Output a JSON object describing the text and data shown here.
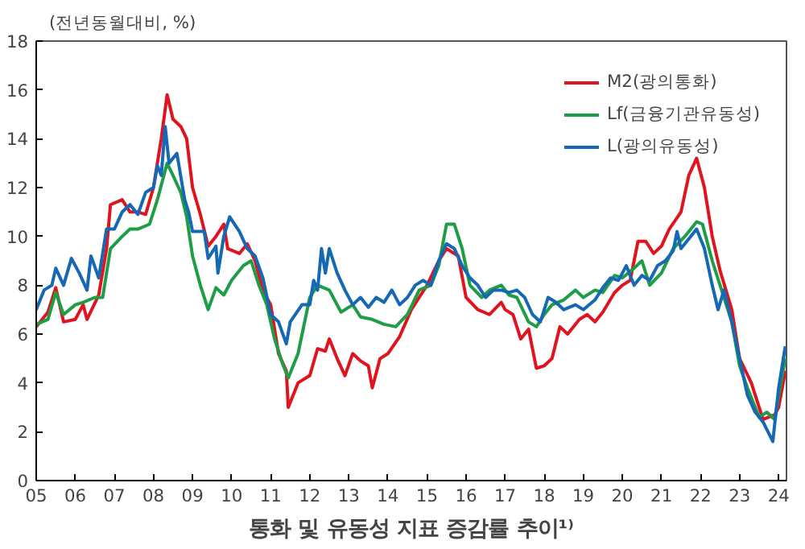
{
  "chart_data": {
    "type": "line",
    "title": "통화 및 유동성 지표 증감률 추이¹⁾",
    "ylabel": "(전년동월대비, %)",
    "xlim": [
      2005,
      2024.2
    ],
    "ylim": [
      0,
      18
    ],
    "yticks": [
      0,
      2,
      4,
      6,
      8,
      10,
      12,
      14,
      16,
      18
    ],
    "xticks": [
      {
        "value": 2005,
        "label": "05"
      },
      {
        "value": 2006,
        "label": "06"
      },
      {
        "value": 2007,
        "label": "07"
      },
      {
        "value": 2008,
        "label": "08"
      },
      {
        "value": 2009,
        "label": "09"
      },
      {
        "value": 2010,
        "label": "10"
      },
      {
        "value": 2011,
        "label": "11"
      },
      {
        "value": 2012,
        "label": "12"
      },
      {
        "value": 2013,
        "label": "13"
      },
      {
        "value": 2014,
        "label": "14"
      },
      {
        "value": 2015,
        "label": "15"
      },
      {
        "value": 2016,
        "label": "16"
      },
      {
        "value": 2017,
        "label": "17"
      },
      {
        "value": 2018,
        "label": "18"
      },
      {
        "value": 2019,
        "label": "19"
      },
      {
        "value": 2020,
        "label": "20"
      },
      {
        "value": 2021,
        "label": "21"
      },
      {
        "value": 2022,
        "label": "22"
      },
      {
        "value": 2023,
        "label": "23"
      },
      {
        "value": 2024,
        "label": "24"
      }
    ],
    "grid": false,
    "legend": "top right",
    "line_style": "solid",
    "series": [
      {
        "name": "M2(광의통화)",
        "color": "#e0141e",
        "x": [
          2005.0,
          2005.3,
          2005.5,
          2005.7,
          2006.0,
          2006.2,
          2006.3,
          2006.6,
          2006.8,
          2006.9,
          2007.2,
          2007.4,
          2007.6,
          2007.8,
          2008.0,
          2008.2,
          2008.35,
          2008.5,
          2008.7,
          2008.85,
          2009.0,
          2009.2,
          2009.4,
          2009.6,
          2009.8,
          2009.9,
          2010.2,
          2010.4,
          2010.6,
          2010.8,
          2011.0,
          2011.2,
          2011.4,
          2011.45,
          2011.7,
          2012.0,
          2012.2,
          2012.4,
          2012.5,
          2012.7,
          2012.9,
          2013.1,
          2013.3,
          2013.5,
          2013.6,
          2013.8,
          2014.0,
          2014.3,
          2014.6,
          2014.8,
          2015.0,
          2015.3,
          2015.5,
          2015.8,
          2016.0,
          2016.3,
          2016.6,
          2016.9,
          2017.0,
          2017.2,
          2017.4,
          2017.6,
          2017.8,
          2018.0,
          2018.2,
          2018.4,
          2018.6,
          2018.9,
          2019.1,
          2019.3,
          2019.5,
          2019.8,
          2020.0,
          2020.2,
          2020.4,
          2020.6,
          2020.8,
          2021.0,
          2021.2,
          2021.5,
          2021.7,
          2021.9,
          2022.1,
          2022.3,
          2022.5,
          2022.8,
          2023.0,
          2023.3,
          2023.6,
          2023.9,
          2024.0,
          2024.17
        ],
        "values": [
          6.3,
          6.9,
          7.9,
          6.5,
          6.6,
          7.2,
          6.6,
          7.6,
          9.5,
          11.3,
          11.5,
          11.0,
          11.0,
          10.9,
          12.0,
          14.0,
          15.8,
          14.8,
          14.5,
          14.0,
          12.0,
          10.9,
          9.6,
          10.0,
          10.5,
          9.5,
          9.3,
          9.7,
          9.0,
          7.8,
          7.2,
          5.2,
          4.5,
          3.0,
          4.0,
          4.3,
          5.4,
          5.3,
          5.8,
          5.0,
          4.3,
          5.2,
          4.9,
          4.7,
          3.8,
          5.0,
          5.2,
          5.9,
          7.0,
          7.5,
          8.0,
          9.0,
          9.5,
          9.2,
          7.5,
          7.0,
          6.8,
          7.3,
          7.0,
          6.8,
          5.8,
          6.2,
          4.6,
          4.7,
          5.0,
          6.3,
          6.0,
          6.6,
          6.8,
          6.5,
          6.9,
          7.7,
          8.0,
          8.2,
          9.8,
          9.8,
          9.3,
          9.6,
          10.3,
          11.0,
          12.5,
          13.2,
          12.0,
          10.0,
          8.6,
          7.0,
          5.0,
          4.0,
          2.5,
          2.7,
          3.0,
          4.5
        ]
      },
      {
        "name": "Lf(금융기관유동성)",
        "color": "#1e9c46",
        "x": [
          2005.0,
          2005.3,
          2005.5,
          2005.7,
          2006.0,
          2006.2,
          2006.5,
          2006.7,
          2006.9,
          2007.2,
          2007.4,
          2007.6,
          2007.9,
          2008.1,
          2008.35,
          2008.5,
          2008.7,
          2008.85,
          2009.0,
          2009.2,
          2009.4,
          2009.6,
          2009.8,
          2010.0,
          2010.3,
          2010.5,
          2010.7,
          2010.9,
          2011.1,
          2011.3,
          2011.45,
          2011.7,
          2012.0,
          2012.2,
          2012.5,
          2012.8,
          2013.1,
          2013.3,
          2013.6,
          2013.9,
          2014.2,
          2014.5,
          2014.8,
          2015.1,
          2015.3,
          2015.5,
          2015.7,
          2015.9,
          2016.1,
          2016.4,
          2016.6,
          2016.9,
          2017.1,
          2017.3,
          2017.6,
          2017.8,
          2018.0,
          2018.2,
          2018.5,
          2018.8,
          2019.0,
          2019.3,
          2019.5,
          2019.8,
          2020.0,
          2020.3,
          2020.5,
          2020.7,
          2021.0,
          2021.3,
          2021.6,
          2021.9,
          2022.05,
          2022.3,
          2022.5,
          2022.8,
          2023.0,
          2023.2,
          2023.5,
          2023.7,
          2023.9,
          2024.0,
          2024.17
        ],
        "values": [
          6.4,
          6.6,
          7.7,
          6.8,
          7.2,
          7.3,
          7.5,
          7.5,
          9.5,
          10.0,
          10.3,
          10.3,
          10.5,
          11.5,
          13.0,
          12.5,
          11.8,
          10.8,
          9.2,
          8.0,
          7.0,
          7.9,
          7.6,
          8.2,
          8.8,
          9.0,
          8.0,
          7.2,
          5.8,
          4.8,
          4.2,
          5.2,
          7.5,
          8.0,
          7.8,
          6.9,
          7.2,
          6.7,
          6.6,
          6.4,
          6.3,
          6.8,
          7.8,
          8.0,
          8.8,
          10.5,
          10.5,
          9.5,
          8.0,
          7.5,
          7.8,
          8.0,
          7.6,
          7.5,
          6.5,
          6.3,
          6.8,
          7.2,
          7.4,
          7.8,
          7.5,
          7.8,
          7.7,
          8.4,
          8.3,
          8.7,
          9.0,
          8.0,
          8.5,
          9.5,
          10.0,
          10.6,
          10.5,
          9.0,
          8.0,
          6.5,
          4.7,
          3.8,
          2.6,
          2.8,
          2.5,
          3.5,
          5.0
        ]
      },
      {
        "name": "L(광의유동성)",
        "color": "#1468b4",
        "x": [
          2005.0,
          2005.2,
          2005.4,
          2005.5,
          2005.7,
          2005.9,
          2006.1,
          2006.3,
          2006.4,
          2006.6,
          2006.8,
          2007.0,
          2007.2,
          2007.4,
          2007.6,
          2007.8,
          2008.0,
          2008.1,
          2008.2,
          2008.3,
          2008.4,
          2008.6,
          2008.8,
          2008.9,
          2009.0,
          2009.3,
          2009.4,
          2009.6,
          2009.65,
          2009.8,
          2009.95,
          2010.2,
          2010.4,
          2010.6,
          2010.8,
          2011.0,
          2011.2,
          2011.4,
          2011.5,
          2011.8,
          2012.0,
          2012.1,
          2012.2,
          2012.3,
          2012.4,
          2012.5,
          2012.7,
          2012.9,
          2013.1,
          2013.3,
          2013.5,
          2013.7,
          2013.9,
          2014.1,
          2014.3,
          2014.5,
          2014.7,
          2014.9,
          2015.1,
          2015.3,
          2015.5,
          2015.7,
          2015.9,
          2016.1,
          2016.3,
          2016.5,
          2016.7,
          2016.9,
          2017.1,
          2017.3,
          2017.5,
          2017.7,
          2017.9,
          2018.1,
          2018.3,
          2018.5,
          2018.8,
          2019.0,
          2019.3,
          2019.5,
          2019.7,
          2019.9,
          2020.1,
          2020.3,
          2020.5,
          2020.7,
          2020.9,
          2021.1,
          2021.3,
          2021.4,
          2021.5,
          2021.7,
          2021.9,
          2022.1,
          2022.3,
          2022.45,
          2022.6,
          2022.8,
          2023.0,
          2023.2,
          2023.4,
          2023.6,
          2023.85,
          2024.0,
          2024.17
        ],
        "values": [
          7.0,
          7.8,
          8.0,
          8.7,
          8.0,
          9.1,
          8.5,
          7.8,
          9.2,
          8.3,
          10.3,
          10.3,
          11.0,
          11.3,
          10.9,
          11.8,
          12.0,
          12.9,
          12.5,
          14.5,
          13.0,
          13.4,
          11.5,
          11.0,
          10.2,
          10.2,
          9.1,
          9.6,
          8.5,
          10.0,
          10.8,
          10.2,
          9.5,
          9.2,
          8.3,
          6.8,
          6.5,
          5.6,
          6.5,
          7.2,
          7.2,
          8.2,
          7.8,
          9.5,
          8.5,
          9.5,
          8.5,
          7.8,
          7.2,
          7.5,
          7.1,
          7.5,
          7.3,
          7.8,
          7.2,
          7.5,
          8.0,
          8.2,
          8.0,
          9.0,
          9.7,
          9.5,
          8.8,
          8.3,
          8.0,
          7.5,
          7.8,
          7.8,
          7.7,
          7.8,
          7.5,
          6.8,
          6.5,
          7.5,
          7.3,
          7.0,
          7.2,
          7.0,
          7.4,
          7.9,
          8.3,
          8.2,
          8.8,
          8.0,
          8.4,
          8.2,
          8.8,
          9.0,
          9.4,
          10.2,
          9.5,
          9.9,
          10.3,
          9.5,
          8.0,
          7.0,
          7.8,
          6.5,
          5.0,
          3.5,
          2.8,
          2.4,
          1.6,
          3.8,
          5.5
        ]
      }
    ]
  }
}
